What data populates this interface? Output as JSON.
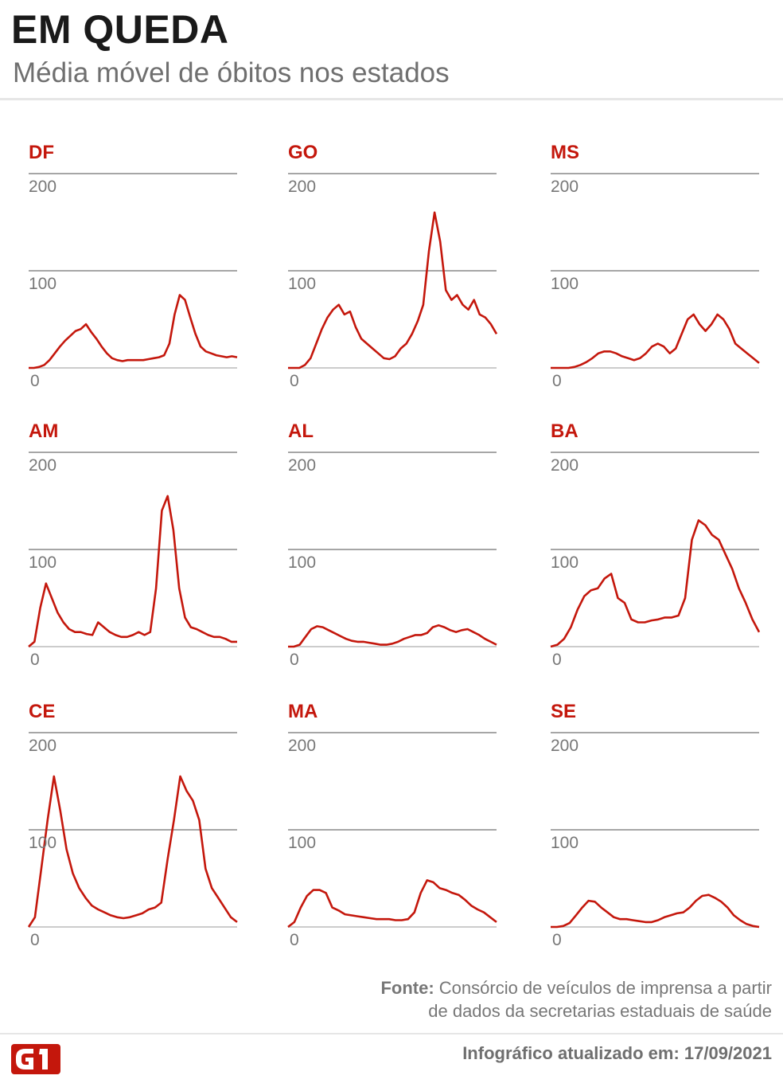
{
  "header": {
    "title": "EM QUEDA",
    "subtitle": "Média móvel de óbitos nos estados"
  },
  "footer": {
    "source_label": "Fonte:",
    "source_line1": "Consórcio de veículos de imprensa a partir",
    "source_line2": "de dados da secretarias estaduais de saúde",
    "updated": "Infográfico atualizado em: 17/09/2021",
    "logo": "G1"
  },
  "colors": {
    "line": "#c4170c",
    "grid": "#a6a6a6",
    "baseline": "#cccccc",
    "logo": "#c4170c"
  },
  "chart_data": [
    {
      "type": "line",
      "state": "DF",
      "ylim": [
        0,
        200
      ],
      "yticks": [
        "200",
        "100",
        "0"
      ],
      "y": [
        0,
        0,
        1,
        3,
        8,
        15,
        22,
        28,
        33,
        38,
        40,
        45,
        37,
        30,
        22,
        15,
        10,
        8,
        7,
        8,
        8,
        8,
        8,
        9,
        10,
        11,
        13,
        25,
        55,
        75,
        70,
        52,
        35,
        22,
        17,
        15,
        13,
        12,
        11,
        12,
        11
      ]
    },
    {
      "type": "line",
      "state": "GO",
      "ylim": [
        0,
        200
      ],
      "yticks": [
        "200",
        "100",
        "0"
      ],
      "y": [
        0,
        0,
        0,
        3,
        10,
        25,
        40,
        52,
        60,
        65,
        55,
        58,
        42,
        30,
        25,
        20,
        15,
        10,
        9,
        12,
        20,
        25,
        35,
        48,
        65,
        120,
        160,
        130,
        80,
        70,
        75,
        65,
        60,
        70,
        55,
        52,
        45,
        35
      ]
    },
    {
      "type": "line",
      "state": "MS",
      "ylim": [
        0,
        200
      ],
      "yticks": [
        "200",
        "100",
        "0"
      ],
      "y": [
        0,
        0,
        0,
        0,
        1,
        3,
        6,
        10,
        15,
        17,
        17,
        15,
        12,
        10,
        8,
        10,
        15,
        22,
        25,
        22,
        15,
        20,
        35,
        50,
        55,
        45,
        38,
        45,
        55,
        50,
        40,
        25,
        20,
        15,
        10,
        5
      ]
    },
    {
      "type": "line",
      "state": "AM",
      "ylim": [
        0,
        200
      ],
      "yticks": [
        "200",
        "100",
        "0"
      ],
      "y": [
        0,
        5,
        40,
        65,
        50,
        35,
        25,
        18,
        15,
        15,
        13,
        12,
        25,
        20,
        15,
        12,
        10,
        10,
        12,
        15,
        12,
        15,
        60,
        140,
        155,
        120,
        60,
        30,
        20,
        18,
        15,
        12,
        10,
        10,
        8,
        5,
        5
      ]
    },
    {
      "type": "line",
      "state": "AL",
      "ylim": [
        0,
        200
      ],
      "yticks": [
        "200",
        "100",
        "0"
      ],
      "y": [
        0,
        0,
        2,
        10,
        18,
        21,
        20,
        17,
        14,
        11,
        8,
        6,
        5,
        5,
        4,
        3,
        2,
        2,
        3,
        5,
        8,
        10,
        12,
        12,
        14,
        20,
        22,
        20,
        17,
        15,
        17,
        18,
        15,
        12,
        8,
        5,
        2
      ]
    },
    {
      "type": "line",
      "state": "BA",
      "ylim": [
        0,
        200
      ],
      "yticks": [
        "200",
        "100",
        "0"
      ],
      "y": [
        0,
        2,
        8,
        20,
        38,
        52,
        58,
        60,
        70,
        75,
        50,
        45,
        28,
        25,
        25,
        27,
        28,
        30,
        30,
        32,
        50,
        110,
        130,
        125,
        115,
        110,
        95,
        80,
        60,
        45,
        28,
        15
      ]
    },
    {
      "type": "line",
      "state": "CE",
      "ylim": [
        0,
        200
      ],
      "yticks": [
        "200",
        "100",
        "0"
      ],
      "y": [
        0,
        10,
        60,
        110,
        155,
        120,
        80,
        55,
        40,
        30,
        22,
        18,
        15,
        12,
        10,
        9,
        10,
        12,
        14,
        18,
        20,
        25,
        70,
        110,
        155,
        140,
        130,
        110,
        60,
        40,
        30,
        20,
        10,
        5
      ]
    },
    {
      "type": "line",
      "state": "MA",
      "ylim": [
        0,
        200
      ],
      "yticks": [
        "200",
        "100",
        "0"
      ],
      "y": [
        0,
        5,
        20,
        32,
        38,
        38,
        35,
        20,
        17,
        13,
        12,
        11,
        10,
        9,
        8,
        8,
        8,
        7,
        7,
        8,
        15,
        35,
        48,
        46,
        40,
        38,
        35,
        33,
        28,
        22,
        18,
        15,
        10,
        5
      ]
    },
    {
      "type": "line",
      "state": "SE",
      "ylim": [
        0,
        200
      ],
      "yticks": [
        "200",
        "100",
        "0"
      ],
      "y": [
        0,
        0,
        1,
        4,
        12,
        20,
        27,
        26,
        20,
        15,
        10,
        8,
        8,
        7,
        6,
        5,
        5,
        7,
        10,
        12,
        14,
        15,
        20,
        27,
        32,
        33,
        30,
        26,
        20,
        12,
        7,
        3,
        1,
        0
      ]
    }
  ]
}
